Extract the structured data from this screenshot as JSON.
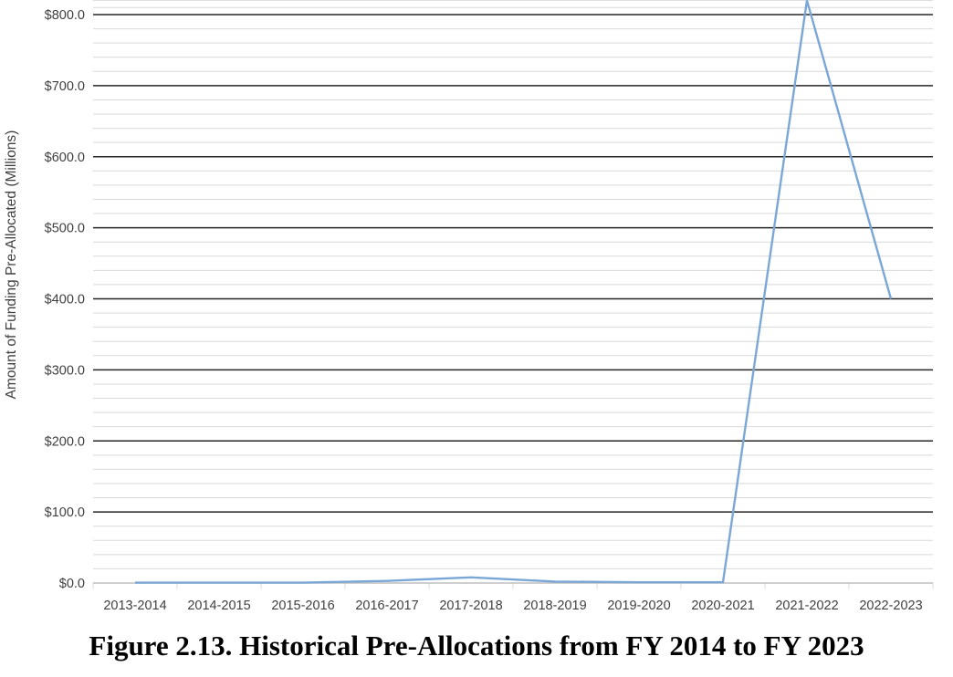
{
  "chart_data": {
    "type": "line",
    "title": "",
    "xlabel": "",
    "ylabel": "Amount of Funding Pre-Allocated (Millions)",
    "categories": [
      "2013-2014",
      "2014-2015",
      "2015-2016",
      "2016-2017",
      "2017-2018",
      "2018-2019",
      "2019-2020",
      "2020-2021",
      "2021-2022",
      "2022-2023"
    ],
    "series": [
      {
        "values": [
          0.5,
          0.5,
          0.5,
          3,
          8,
          2,
          1,
          1,
          820,
          400
        ],
        "color": "#7ba7d7"
      }
    ],
    "ylim": [
      0,
      800
    ],
    "yticks": [
      0,
      100,
      200,
      300,
      400,
      500,
      600,
      700,
      800
    ],
    "ytick_labels": [
      "$0.0",
      "$100.0",
      "$200.0",
      "$300.0",
      "$400.0",
      "$500.0",
      "$600.0",
      "$700.0",
      "$800.0"
    ],
    "major_grid_color": "#262626",
    "minor_grid_color": "#d9d9d9",
    "grid": true,
    "legend": "none"
  },
  "caption": "Figure 2.13. Historical Pre-Allocations from FY 2014 to FY 2023"
}
